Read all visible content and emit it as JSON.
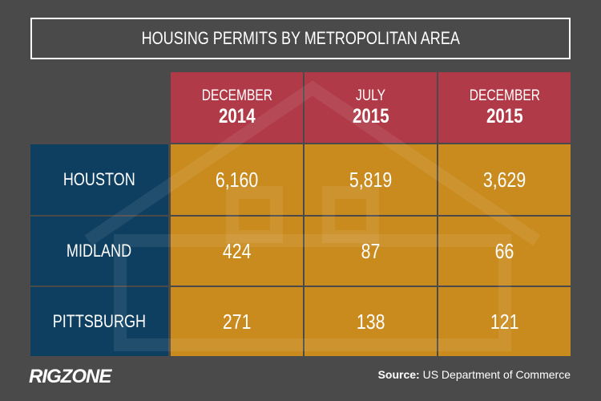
{
  "title": "HOUSING PERMITS BY METROPOLITAN AREA",
  "table": {
    "columns": [
      [
        "DECEMBER",
        "2014"
      ],
      [
        "JULY",
        "2015"
      ],
      [
        "DECEMBER",
        "2015"
      ]
    ],
    "rows": [
      [
        "HOUSTON",
        "6,160",
        "5,819",
        "3,629"
      ],
      [
        "MIDLAND",
        "424",
        "87",
        "66"
      ],
      [
        "PITTSBURGH",
        "271",
        "138",
        "121"
      ]
    ]
  },
  "footer": {
    "logo": "RIGZONE",
    "source_label": "Source:",
    "source": "US Department of Commerce"
  }
}
